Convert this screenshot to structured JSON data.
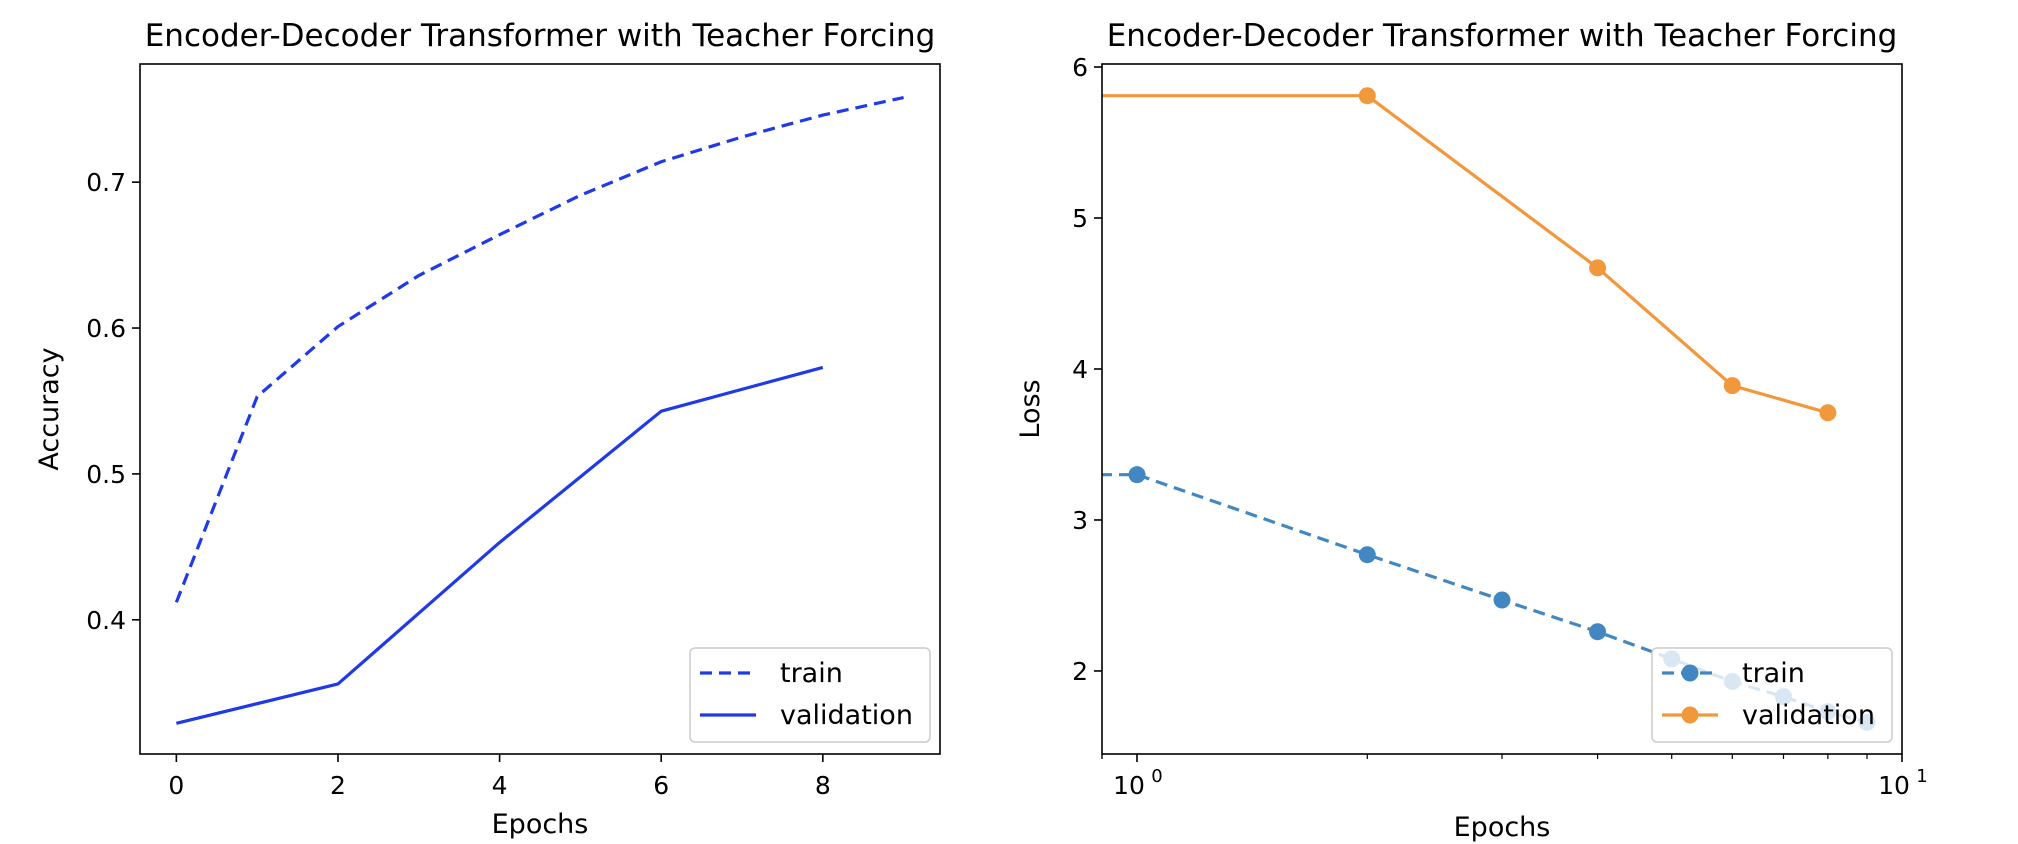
{
  "chart_data": [
    {
      "type": "line",
      "title": "Encoder-Decoder Transformer with Teacher Forcing",
      "xlabel": "Epochs",
      "ylabel": "Accuracy",
      "xscale": "linear",
      "xlim": [
        -0.45,
        9.45
      ],
      "ylim": [
        0.308,
        0.781
      ],
      "xticks": [
        0,
        2,
        4,
        6,
        8
      ],
      "xtick_labels": [
        "0",
        "2",
        "4",
        "6",
        "8"
      ],
      "yticks": [
        0.4,
        0.5,
        0.6,
        0.7
      ],
      "ytick_labels": [
        "0.4",
        "0.5",
        "0.6",
        "0.7"
      ],
      "grid": false,
      "legend_position": "lower right",
      "series": [
        {
          "name": "train",
          "style": "dashed",
          "marker": "none",
          "color": "#1f3ae6",
          "x": [
            0,
            1,
            2,
            3,
            4,
            5,
            6,
            7,
            8,
            9
          ],
          "y": [
            0.412,
            0.553,
            0.601,
            0.636,
            0.664,
            0.691,
            0.714,
            0.731,
            0.746,
            0.758
          ]
        },
        {
          "name": "validation",
          "style": "solid",
          "marker": "none",
          "color": "#1f3ae6",
          "x": [
            0,
            2,
            4,
            6,
            8
          ],
          "y": [
            0.329,
            0.356,
            0.453,
            0.543,
            0.573
          ]
        }
      ]
    },
    {
      "type": "line",
      "title": "Encoder-Decoder Transformer with Teacher Forcing",
      "xlabel": "Epochs",
      "ylabel": "Loss",
      "xscale": "log",
      "xlim": [
        0.9,
        10
      ],
      "ylim": [
        1.45,
        6.02
      ],
      "xticks": [
        1,
        10
      ],
      "xtick_labels": [
        {
          "base": "10",
          "exp": "0"
        },
        {
          "base": "10",
          "exp": "1"
        }
      ],
      "yticks": [
        2,
        3,
        4,
        5,
        6
      ],
      "ytick_labels": [
        "2",
        "3",
        "4",
        "5",
        "6"
      ],
      "grid": false,
      "legend_position": "lower right",
      "series": [
        {
          "name": "train",
          "style": "dashed",
          "marker": "circle",
          "color": "#4287c2",
          "x": [
            0,
            1,
            2,
            3,
            4,
            5,
            6,
            7,
            8,
            9
          ],
          "y": [
            3.3,
            3.3,
            2.77,
            2.47,
            2.26,
            2.08,
            1.93,
            1.83,
            1.73,
            1.66
          ]
        },
        {
          "name": "validation",
          "style": "solid",
          "marker": "circle",
          "color": "#f0983b",
          "x": [
            0,
            2,
            4,
            6,
            8
          ],
          "y": [
            5.81,
            5.81,
            4.67,
            3.89,
            3.71
          ]
        }
      ]
    }
  ]
}
